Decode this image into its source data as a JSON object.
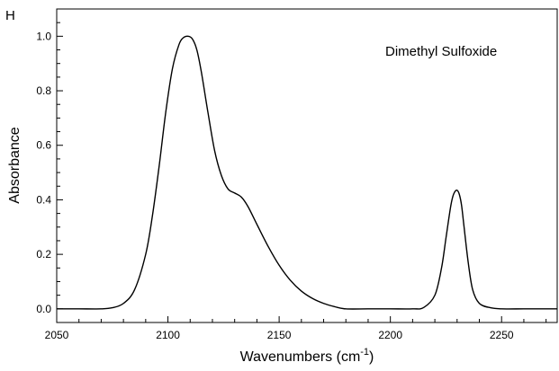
{
  "panel_label": "H",
  "chart_data": {
    "type": "line",
    "annotation": "Dimethyl Sulfoxide",
    "xlabel": "Wavenumbers (cm",
    "xlabel_sup": "-1",
    "xlabel_close": ")",
    "ylabel": "Absorbance",
    "xlim": [
      2050,
      2275
    ],
    "ylim": [
      -0.05,
      1.1
    ],
    "x_ticks": [
      2050,
      2100,
      2150,
      2200,
      2250
    ],
    "x_tick_labels": [
      "2050",
      "2100",
      "2150",
      "2200",
      "2250"
    ],
    "y_ticks": [
      0.0,
      0.2,
      0.4,
      0.6,
      0.8,
      1.0
    ],
    "y_tick_labels": [
      "0.0",
      "0.2",
      "0.4",
      "0.6",
      "0.8",
      "1.0"
    ],
    "grid": false,
    "series": [
      {
        "color": "#000000",
        "x": [
          2050,
          2060,
          2070,
          2075,
          2080,
          2085,
          2090,
          2093,
          2096,
          2099,
          2102,
          2105,
          2107,
          2109,
          2111,
          2113,
          2115,
          2118,
          2121,
          2124,
          2127,
          2130,
          2133,
          2136,
          2140,
          2145,
          2150,
          2155,
          2160,
          2165,
          2170,
          2175,
          2180,
          2190,
          2200,
          2210,
          2215,
          2220,
          2223,
          2225,
          2227,
          2228,
          2229,
          2230,
          2231,
          2232,
          2233,
          2235,
          2237,
          2240,
          2245,
          2250,
          2260,
          2270,
          2275
        ],
        "y": [
          0.0,
          0.0,
          0.0,
          0.004,
          0.02,
          0.07,
          0.2,
          0.34,
          0.52,
          0.72,
          0.88,
          0.97,
          0.995,
          1.0,
          0.99,
          0.95,
          0.87,
          0.72,
          0.58,
          0.49,
          0.44,
          0.425,
          0.41,
          0.375,
          0.31,
          0.23,
          0.16,
          0.105,
          0.065,
          0.038,
          0.02,
          0.008,
          0.0,
          0.0,
          0.0,
          0.0,
          0.005,
          0.05,
          0.15,
          0.26,
          0.37,
          0.41,
          0.43,
          0.435,
          0.42,
          0.38,
          0.31,
          0.17,
          0.07,
          0.02,
          0.004,
          0.0,
          0.0,
          0.0,
          0.0
        ]
      }
    ]
  }
}
